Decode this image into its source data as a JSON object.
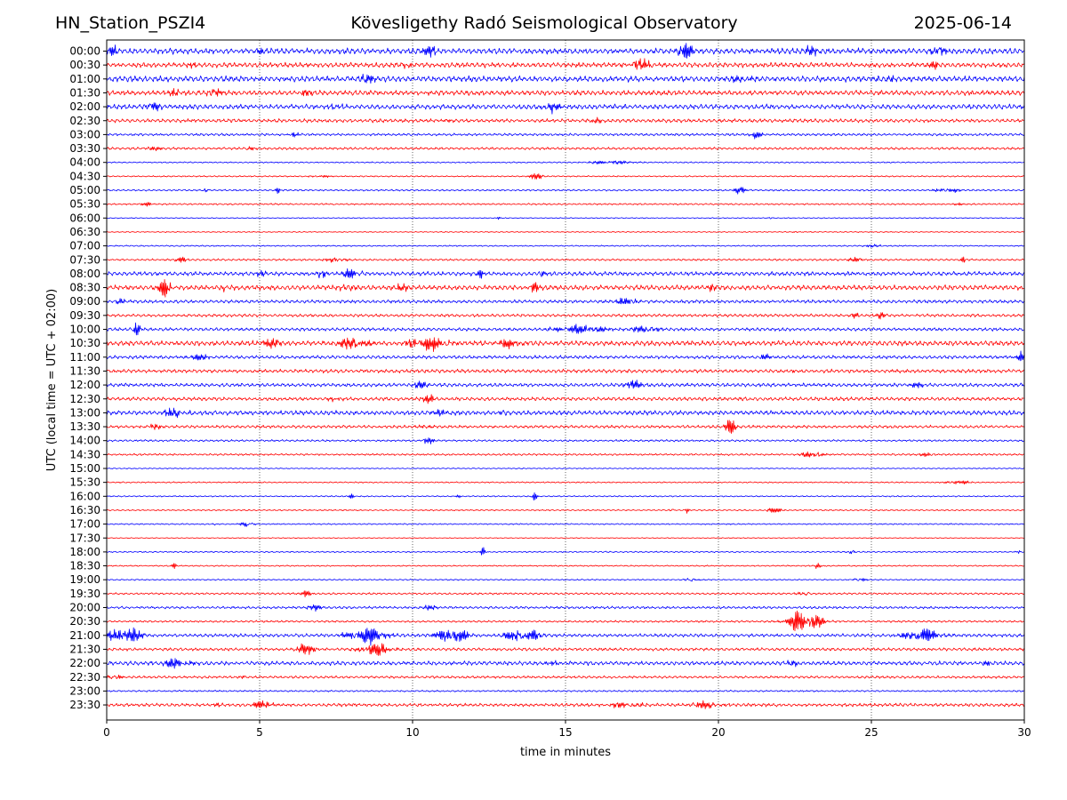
{
  "header": {
    "station": "HN_Station_PSZI4",
    "observatory": "Kövesligethy Radó Seismological Observatory",
    "date": "2025-06-14"
  },
  "chart_data": {
    "type": "line",
    "xlabel": "time in minutes",
    "ylabel": "UTC (local time = UTC + 02:00)",
    "xlim": [
      0,
      30
    ],
    "x_ticks": [
      "0",
      "5",
      "10",
      "15",
      "20",
      "25",
      "30"
    ],
    "x_tick_values": [
      0,
      5,
      10,
      15,
      20,
      25,
      30
    ],
    "grid": "vertical dotted at 5-minute intervals",
    "colors": {
      "even": "#0000ff",
      "odd": "#ff0000"
    },
    "rows": [
      {
        "label": "00:00",
        "noise": 0.35,
        "events": [
          {
            "t": 0.2,
            "a": 0.6,
            "w": 0.25
          },
          {
            "t": 5.0,
            "a": 0.5,
            "w": 0.2
          },
          {
            "t": 10.6,
            "a": 0.5,
            "w": 0.4
          },
          {
            "t": 18.9,
            "a": 0.9,
            "w": 0.45
          },
          {
            "t": 22.9,
            "a": 0.7,
            "w": 0.4
          },
          {
            "t": 27.2,
            "a": 0.8,
            "w": 0.35
          }
        ]
      },
      {
        "label": "00:30",
        "noise": 0.3,
        "events": [
          {
            "t": 2.8,
            "a": 0.3,
            "w": 0.2
          },
          {
            "t": 9.8,
            "a": 0.4,
            "w": 0.3
          },
          {
            "t": 17.5,
            "a": 0.6,
            "w": 0.6
          },
          {
            "t": 27.0,
            "a": 0.5,
            "w": 0.3
          }
        ]
      },
      {
        "label": "01:00",
        "noise": 0.35,
        "events": [
          {
            "t": 8.5,
            "a": 0.4,
            "w": 0.5
          },
          {
            "t": 20.8,
            "a": 0.4,
            "w": 0.6
          },
          {
            "t": 25.5,
            "a": 0.3,
            "w": 0.5
          }
        ]
      },
      {
        "label": "01:30",
        "noise": 0.3,
        "events": [
          {
            "t": 3.5,
            "a": 0.7,
            "w": 0.35
          },
          {
            "t": 2.2,
            "a": 0.35,
            "w": 0.3
          },
          {
            "t": 6.5,
            "a": 0.3,
            "w": 0.3
          }
        ]
      },
      {
        "label": "02:00",
        "noise": 0.3,
        "events": [
          {
            "t": 1.5,
            "a": 0.6,
            "w": 0.3
          },
          {
            "t": 7.5,
            "a": 0.4,
            "w": 0.3
          },
          {
            "t": 14.5,
            "a": 0.7,
            "w": 0.4
          }
        ]
      },
      {
        "label": "02:30",
        "noise": 0.22,
        "events": [
          {
            "t": 11.0,
            "a": 0.3,
            "w": 0.4
          },
          {
            "t": 16.0,
            "a": 0.3,
            "w": 0.3
          }
        ]
      },
      {
        "label": "03:00",
        "noise": 0.15,
        "events": [
          {
            "t": 6.1,
            "a": 0.4,
            "w": 0.2
          },
          {
            "t": 21.2,
            "a": 0.45,
            "w": 0.3
          }
        ]
      },
      {
        "label": "03:30",
        "noise": 0.15,
        "events": [
          {
            "t": 1.5,
            "a": 0.25,
            "w": 0.4
          },
          {
            "t": 4.7,
            "a": 0.3,
            "w": 0.2
          }
        ]
      },
      {
        "label": "04:00",
        "noise": 0.08,
        "events": [
          {
            "t": 16.5,
            "a": 0.2,
            "w": 1.2
          }
        ]
      },
      {
        "label": "04:30",
        "noise": 0.08,
        "events": [
          {
            "t": 14.0,
            "a": 0.35,
            "w": 0.4
          },
          {
            "t": 7.0,
            "a": 0.15,
            "w": 0.5
          }
        ]
      },
      {
        "label": "05:00",
        "noise": 0.1,
        "events": [
          {
            "t": 3.2,
            "a": 0.3,
            "w": 0.2
          },
          {
            "t": 5.6,
            "a": 0.35,
            "w": 0.1
          },
          {
            "t": 20.7,
            "a": 0.4,
            "w": 0.3
          },
          {
            "t": 27.5,
            "a": 0.25,
            "w": 0.6
          }
        ]
      },
      {
        "label": "05:30",
        "noise": 0.1,
        "events": [
          {
            "t": 1.3,
            "a": 0.3,
            "w": 0.2
          },
          {
            "t": 27.8,
            "a": 0.25,
            "w": 0.2
          }
        ]
      },
      {
        "label": "06:00",
        "noise": 0.06,
        "events": [
          {
            "t": 12.8,
            "a": 0.2,
            "w": 0.1
          },
          {
            "t": 21.7,
            "a": 0.2,
            "w": 0.1
          }
        ]
      },
      {
        "label": "06:30",
        "noise": 0.06,
        "events": [
          {
            "t": 22.5,
            "a": 0.2,
            "w": 0.1
          }
        ]
      },
      {
        "label": "07:00",
        "noise": 0.08,
        "events": [
          {
            "t": 25.0,
            "a": 0.15,
            "w": 0.5
          }
        ]
      },
      {
        "label": "07:30",
        "noise": 0.12,
        "events": [
          {
            "t": 2.4,
            "a": 0.3,
            "w": 0.3
          },
          {
            "t": 7.5,
            "a": 0.3,
            "w": 0.5
          },
          {
            "t": 24.5,
            "a": 0.3,
            "w": 0.4
          },
          {
            "t": 28.0,
            "a": 0.45,
            "w": 0.1
          }
        ]
      },
      {
        "label": "08:00",
        "noise": 0.25,
        "events": [
          {
            "t": 5.0,
            "a": 0.4,
            "w": 0.3
          },
          {
            "t": 7.0,
            "a": 0.5,
            "w": 0.3
          },
          {
            "t": 8.0,
            "a": 0.6,
            "w": 0.4
          },
          {
            "t": 12.2,
            "a": 0.9,
            "w": 0.15
          },
          {
            "t": 14.2,
            "a": 0.5,
            "w": 0.2
          },
          {
            "t": 16.5,
            "a": 0.3,
            "w": 0.1
          }
        ]
      },
      {
        "label": "08:30",
        "noise": 0.3,
        "events": [
          {
            "t": 1.9,
            "a": 1.0,
            "w": 0.3
          },
          {
            "t": 3.8,
            "a": 0.4,
            "w": 0.1
          },
          {
            "t": 7.8,
            "a": 0.5,
            "w": 0.4
          },
          {
            "t": 9.6,
            "a": 0.5,
            "w": 0.3
          },
          {
            "t": 14.0,
            "a": 0.5,
            "w": 0.2
          },
          {
            "t": 19.8,
            "a": 0.3,
            "w": 0.2
          }
        ]
      },
      {
        "label": "09:00",
        "noise": 0.2,
        "events": [
          {
            "t": 0.5,
            "a": 0.3,
            "w": 0.3
          },
          {
            "t": 17.0,
            "a": 0.4,
            "w": 0.5
          }
        ]
      },
      {
        "label": "09:30",
        "noise": 0.18,
        "events": [
          {
            "t": 24.5,
            "a": 0.3,
            "w": 0.2
          },
          {
            "t": 25.3,
            "a": 0.3,
            "w": 0.3
          }
        ]
      },
      {
        "label": "10:00",
        "noise": 0.2,
        "events": [
          {
            "t": 1.0,
            "a": 0.8,
            "w": 0.15
          },
          {
            "t": 15.5,
            "a": 0.5,
            "w": 1.2
          },
          {
            "t": 17.6,
            "a": 0.5,
            "w": 0.6
          }
        ]
      },
      {
        "label": "10:30",
        "noise": 0.3,
        "events": [
          {
            "t": 5.3,
            "a": 0.5,
            "w": 0.6
          },
          {
            "t": 8.0,
            "a": 0.6,
            "w": 0.8
          },
          {
            "t": 10.5,
            "a": 0.8,
            "w": 1.0
          },
          {
            "t": 13.2,
            "a": 0.5,
            "w": 0.6
          }
        ]
      },
      {
        "label": "11:00",
        "noise": 0.2,
        "events": [
          {
            "t": 3.0,
            "a": 0.3,
            "w": 0.5
          },
          {
            "t": 21.5,
            "a": 0.3,
            "w": 0.3
          },
          {
            "t": 29.9,
            "a": 0.5,
            "w": 0.2
          }
        ]
      },
      {
        "label": "11:30",
        "noise": 0.22,
        "events": [
          {
            "t": 15.9,
            "a": 0.4,
            "w": 0.1
          },
          {
            "t": 22.5,
            "a": 0.3,
            "w": 0.1
          }
        ]
      },
      {
        "label": "12:00",
        "noise": 0.22,
        "events": [
          {
            "t": 10.3,
            "a": 0.4,
            "w": 0.4
          },
          {
            "t": 17.2,
            "a": 0.5,
            "w": 0.4
          },
          {
            "t": 26.5,
            "a": 0.3,
            "w": 0.3
          }
        ]
      },
      {
        "label": "12:30",
        "noise": 0.22,
        "events": [
          {
            "t": 7.5,
            "a": 0.3,
            "w": 0.4
          },
          {
            "t": 10.5,
            "a": 0.5,
            "w": 0.3
          }
        ]
      },
      {
        "label": "13:00",
        "noise": 0.28,
        "events": [
          {
            "t": 2.2,
            "a": 0.5,
            "w": 0.6
          },
          {
            "t": 10.8,
            "a": 0.4,
            "w": 0.4
          },
          {
            "t": 13.0,
            "a": 0.4,
            "w": 0.2
          }
        ]
      },
      {
        "label": "13:30",
        "noise": 0.18,
        "events": [
          {
            "t": 1.5,
            "a": 0.3,
            "w": 0.4
          },
          {
            "t": 10.4,
            "a": 0.3,
            "w": 0.3
          },
          {
            "t": 20.4,
            "a": 0.7,
            "w": 0.3
          }
        ]
      },
      {
        "label": "14:00",
        "noise": 0.12,
        "events": [
          {
            "t": 10.5,
            "a": 0.4,
            "w": 0.3
          }
        ]
      },
      {
        "label": "14:30",
        "noise": 0.12,
        "events": [
          {
            "t": 23.1,
            "a": 0.4,
            "w": 0.5
          },
          {
            "t": 26.8,
            "a": 0.2,
            "w": 0.3
          }
        ]
      },
      {
        "label": "15:00",
        "noise": 0.06,
        "events": []
      },
      {
        "label": "15:30",
        "noise": 0.08,
        "events": [
          {
            "t": 27.8,
            "a": 0.3,
            "w": 0.5
          }
        ]
      },
      {
        "label": "16:00",
        "noise": 0.08,
        "events": [
          {
            "t": 8.0,
            "a": 0.4,
            "w": 0.1
          },
          {
            "t": 14.0,
            "a": 0.7,
            "w": 0.1
          },
          {
            "t": 11.5,
            "a": 0.2,
            "w": 0.1
          }
        ]
      },
      {
        "label": "16:30",
        "noise": 0.08,
        "events": [
          {
            "t": 18.5,
            "a": 0.45,
            "w": 0.1
          },
          {
            "t": 19.0,
            "a": 0.35,
            "w": 0.1
          },
          {
            "t": 21.8,
            "a": 0.3,
            "w": 0.4
          }
        ]
      },
      {
        "label": "17:00",
        "noise": 0.08,
        "events": [
          {
            "t": 4.6,
            "a": 0.45,
            "w": 0.3
          },
          {
            "t": 3.5,
            "a": 0.25,
            "w": 0.1
          }
        ]
      },
      {
        "label": "17:30",
        "noise": 0.05,
        "events": []
      },
      {
        "label": "18:00",
        "noise": 0.08,
        "events": [
          {
            "t": 12.3,
            "a": 0.5,
            "w": 0.1
          },
          {
            "t": 24.3,
            "a": 0.35,
            "w": 0.2
          },
          {
            "t": 29.8,
            "a": 0.3,
            "w": 0.1
          }
        ]
      },
      {
        "label": "18:30",
        "noise": 0.08,
        "events": [
          {
            "t": 2.2,
            "a": 0.35,
            "w": 0.1
          },
          {
            "t": 23.2,
            "a": 0.35,
            "w": 0.2
          }
        ]
      },
      {
        "label": "19:00",
        "noise": 0.08,
        "events": [
          {
            "t": 19.1,
            "a": 0.3,
            "w": 0.3
          },
          {
            "t": 24.6,
            "a": 0.3,
            "w": 0.3
          }
        ]
      },
      {
        "label": "19:30",
        "noise": 0.12,
        "events": [
          {
            "t": 6.5,
            "a": 0.3,
            "w": 0.3
          },
          {
            "t": 22.8,
            "a": 0.3,
            "w": 0.3
          }
        ]
      },
      {
        "label": "20:00",
        "noise": 0.15,
        "events": [
          {
            "t": 6.8,
            "a": 0.3,
            "w": 0.4
          },
          {
            "t": 10.5,
            "a": 0.25,
            "w": 0.5
          }
        ]
      },
      {
        "label": "20:30",
        "noise": 0.12,
        "events": [
          {
            "t": 22.8,
            "a": 1.3,
            "w": 0.8
          }
        ]
      },
      {
        "label": "21:00",
        "noise": 0.2,
        "events": [
          {
            "t": 0.6,
            "a": 0.9,
            "w": 0.8
          },
          {
            "t": 8.5,
            "a": 1.0,
            "w": 0.9
          },
          {
            "t": 11.3,
            "a": 0.8,
            "w": 0.8
          },
          {
            "t": 13.6,
            "a": 0.7,
            "w": 0.9
          },
          {
            "t": 26.7,
            "a": 0.7,
            "w": 0.9
          }
        ]
      },
      {
        "label": "21:30",
        "noise": 0.18,
        "events": [
          {
            "t": 6.5,
            "a": 0.6,
            "w": 0.5
          },
          {
            "t": 8.8,
            "a": 0.7,
            "w": 0.8
          }
        ]
      },
      {
        "label": "22:00",
        "noise": 0.25,
        "events": [
          {
            "t": 2.2,
            "a": 0.5,
            "w": 0.8
          },
          {
            "t": 14.5,
            "a": 0.3,
            "w": 0.3
          },
          {
            "t": 22.5,
            "a": 0.35,
            "w": 0.3
          },
          {
            "t": 28.8,
            "a": 0.3,
            "w": 0.2
          }
        ]
      },
      {
        "label": "22:30",
        "noise": 0.15,
        "events": [
          {
            "t": 0.3,
            "a": 0.4,
            "w": 0.3
          },
          {
            "t": 4.4,
            "a": 0.25,
            "w": 0.2
          }
        ]
      },
      {
        "label": "23:00",
        "noise": 0.1,
        "events": []
      },
      {
        "label": "23:30",
        "noise": 0.2,
        "events": [
          {
            "t": 3.5,
            "a": 0.3,
            "w": 0.3
          },
          {
            "t": 5.1,
            "a": 0.5,
            "w": 0.5
          },
          {
            "t": 17.0,
            "a": 0.3,
            "w": 0.8
          },
          {
            "t": 19.5,
            "a": 0.35,
            "w": 0.8
          }
        ]
      }
    ]
  }
}
